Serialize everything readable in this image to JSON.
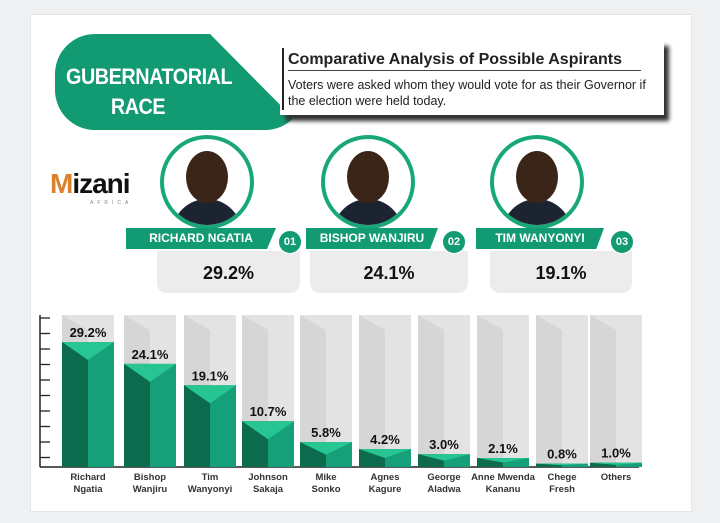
{
  "banner": {
    "line1": "GUBERNATORIAL",
    "line2": "RACE"
  },
  "header": {
    "title": "Comparative Analysis of Possible Aspirants",
    "subtitle": "Voters were asked whom they would vote for as their Governor if the election were held today."
  },
  "logo": {
    "text": "Mizani",
    "sub": "AFRICA"
  },
  "top3": [
    {
      "name": "RICHARD NGATIA",
      "rank": "01",
      "pct": "29.2%"
    },
    {
      "name": "BISHOP WANJIRU",
      "rank": "02",
      "pct": "24.1%"
    },
    {
      "name": "TIM WANYONYI",
      "rank": "03",
      "pct": "19.1%"
    }
  ],
  "colors": {
    "dark": "#0b6b4c",
    "mid": "#15a079",
    "light": "#27c592",
    "track": "#e3e3e3"
  },
  "chart_data": {
    "type": "bar",
    "title": "Comparative Analysis of Possible Aspirants",
    "categories": [
      "Richard Ngatia",
      "Bishop Wanjiru",
      "Tim Wanyonyi",
      "Johnson Sakaja",
      "Mike Sonko",
      "Agnes Kagure",
      "George Aladwa",
      "Anne Mwenda Kananu",
      "Chege Fresh",
      "Others"
    ],
    "category_lines": [
      [
        "Richard",
        "Ngatia"
      ],
      [
        "Bishop",
        "Wanjiru"
      ],
      [
        "Tim",
        "Wanyonyi"
      ],
      [
        "Johnson",
        "Sakaja"
      ],
      [
        "Mike",
        "Sonko"
      ],
      [
        "Agnes",
        "Kagure"
      ],
      [
        "George",
        "Aladwa"
      ],
      [
        "Anne Mwenda",
        "Kananu"
      ],
      [
        "Chege",
        "Fresh"
      ],
      [
        "Others",
        ""
      ]
    ],
    "values": [
      29.2,
      24.1,
      19.1,
      10.7,
      5.8,
      4.2,
      3.0,
      2.1,
      0.8,
      1.0
    ],
    "labels": [
      "29.2%",
      "24.1%",
      "19.1%",
      "10.7%",
      "5.8%",
      "4.2%",
      "3.0%",
      "2.1%",
      "0.8%",
      "1.0%"
    ],
    "unit": "%",
    "ylim": [
      0,
      35
    ],
    "grid": false,
    "legend": "none"
  }
}
